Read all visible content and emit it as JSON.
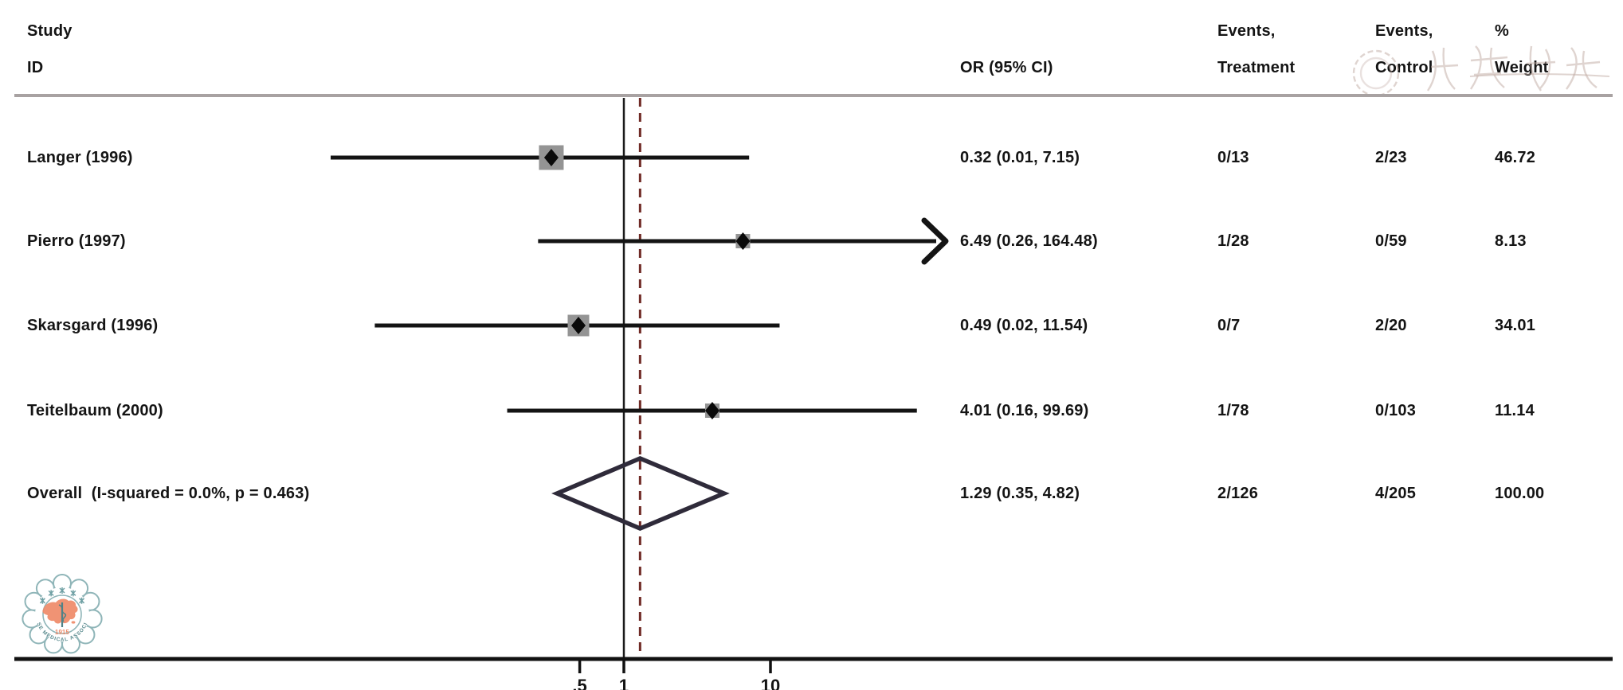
{
  "header": {
    "study_line1": "Study",
    "study_line2": "ID",
    "or_header": "OR (95% CI)",
    "treatment_line1": "Events,",
    "treatment_line2": "Treatment",
    "control_line1": "Events,",
    "control_line2": "Control",
    "weight_line1": "%",
    "weight_line2": "Weight"
  },
  "chart_data": {
    "type": "forest_plot",
    "effect_measure": "OR",
    "x_scale": "log10",
    "x_ticks": [
      {
        "value": 0.5,
        "label": ".5"
      },
      {
        "value": 1,
        "label": "1"
      },
      {
        "value": 10,
        "label": "10"
      }
    ],
    "reference_line": 1,
    "pooled_estimate_line": 1.29,
    "studies": [
      {
        "id": "Langer (1996)",
        "or": 0.32,
        "ci_low": 0.01,
        "ci_high": 7.15,
        "or_text": "0.32 (0.01, 7.15)",
        "events_treatment": "0/13",
        "events_control": "2/23",
        "weight_pct": 46.72,
        "weight_text": "46.72",
        "ci_exceeds_axis": false
      },
      {
        "id": "Pierro (1997)",
        "or": 6.49,
        "ci_low": 0.26,
        "ci_high": 164.48,
        "or_text": "6.49 (0.26, 164.48)",
        "events_treatment": "1/28",
        "events_control": "0/59",
        "weight_pct": 8.13,
        "weight_text": "8.13",
        "ci_exceeds_axis": true
      },
      {
        "id": "Skarsgard (1996)",
        "or": 0.49,
        "ci_low": 0.02,
        "ci_high": 11.54,
        "or_text": "0.49 (0.02, 11.54)",
        "events_treatment": "0/7",
        "events_control": "2/20",
        "weight_pct": 34.01,
        "weight_text": "34.01",
        "ci_exceeds_axis": false
      },
      {
        "id": "Teitelbaum (2000)",
        "or": 4.01,
        "ci_low": 0.16,
        "ci_high": 99.69,
        "or_text": "4.01 (0.16, 99.69)",
        "events_treatment": "1/78",
        "events_control": "0/103",
        "weight_pct": 11.14,
        "weight_text": "11.14",
        "ci_exceeds_axis": false
      }
    ],
    "overall": {
      "id": "Overall  (I-squared = 0.0%, p = 0.463)",
      "or": 1.29,
      "ci_low": 0.35,
      "ci_high": 4.82,
      "or_text": "1.29 (0.35, 4.82)",
      "events_treatment": "2/126",
      "events_control": "4/205",
      "weight_text": "100.00"
    }
  },
  "watermarks": {
    "header_stamp_text": "中华医学会",
    "logo": {
      "chinese_name": "中华医学会",
      "english_name": "CHINESE MEDICAL ASSOCIATION",
      "year": "1915"
    }
  },
  "colors": {
    "text": "#141414",
    "ci_line": "#141414",
    "marker_square": "#949494",
    "marker_point": "#0a0a0a",
    "diamond_outline": "#2f2b3a",
    "reference_line": "#1a1a1a",
    "pooled_dashed_line": "#702b26",
    "header_rule": "#a8a2a2",
    "axis_line": "#111111",
    "logo_teal": "#8fb5b8",
    "logo_teal_dark": "#4f8287",
    "logo_salmon": "#ef8a68",
    "watermark_faint": "#c0a9a2"
  }
}
